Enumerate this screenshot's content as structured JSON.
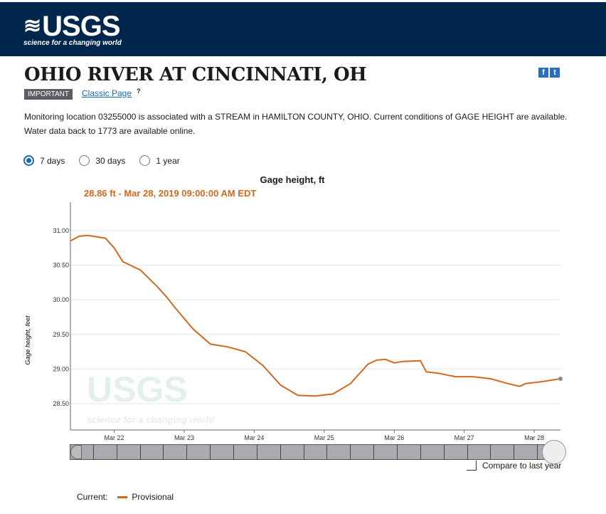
{
  "header": {
    "logo_text": "USGS",
    "logo_tagline": "science for a changing world"
  },
  "page": {
    "title": "OHIO RIVER AT CINCINNATI, OH",
    "badge": "IMPORTANT",
    "classic_link": "Classic Page",
    "help_icon": "?",
    "description_line1": "Monitoring location 03255000 is associated with a STREAM in HAMILTON COUNTY, OHIO. Current conditions of GAGE HEIGHT are available.",
    "description_line2": "Water data back to 1773 are available online.",
    "social": {
      "facebook": "f",
      "twitter": "t"
    }
  },
  "period_options": [
    {
      "label": "7 days",
      "selected": true
    },
    {
      "label": "30 days",
      "selected": false
    },
    {
      "label": "1 year",
      "selected": false
    }
  ],
  "compare_label": "Compare to last year",
  "legend": {
    "label": "Current:",
    "series": "Provisional"
  },
  "colors": {
    "header": "#00264c",
    "series": "#d2691e",
    "link": "#1a6bb5"
  },
  "chart_data": {
    "type": "line",
    "title": "Gage height, ft",
    "tooltip": "28.86 ft - Mar 28, 2019 09:00:00 AM EDT",
    "ylabel": "Gage height, feet",
    "xlim": [
      "2019-03-21T09:00",
      "2019-03-28T09:00"
    ],
    "ylim": [
      28.12,
      31.41
    ],
    "yticks": [
      "28.50",
      "29.00",
      "29.50",
      "30.00",
      "30.50",
      "31.00"
    ],
    "xticks": [
      {
        "date": "2019-03-22T00:00",
        "label": "Mar 22"
      },
      {
        "date": "2019-03-23T00:00",
        "label": "Mar 23"
      },
      {
        "date": "2019-03-24T00:00",
        "label": "Mar 24"
      },
      {
        "date": "2019-03-25T00:00",
        "label": "Mar 25"
      },
      {
        "date": "2019-03-26T00:00",
        "label": "Mar 26"
      },
      {
        "date": "2019-03-27T00:00",
        "label": "Mar 27"
      },
      {
        "date": "2019-03-28T00:00",
        "label": "Mar 28"
      }
    ],
    "grid": true,
    "series": [
      {
        "name": "Provisional",
        "points": [
          [
            "2019-03-21T09:00",
            30.85
          ],
          [
            "2019-03-21T12:00",
            30.92
          ],
          [
            "2019-03-21T15:00",
            30.93
          ],
          [
            "2019-03-21T18:00",
            30.91
          ],
          [
            "2019-03-21T21:00",
            30.89
          ],
          [
            "2019-03-22T00:00",
            30.75
          ],
          [
            "2019-03-22T03:00",
            30.55
          ],
          [
            "2019-03-22T09:00",
            30.43
          ],
          [
            "2019-03-22T15:00",
            30.18
          ],
          [
            "2019-03-22T18:00",
            30.04
          ],
          [
            "2019-03-22T21:00",
            29.88
          ],
          [
            "2019-03-23T03:00",
            29.58
          ],
          [
            "2019-03-23T09:00",
            29.36
          ],
          [
            "2019-03-23T15:00",
            29.32
          ],
          [
            "2019-03-23T21:00",
            29.25
          ],
          [
            "2019-03-24T03:00",
            29.05
          ],
          [
            "2019-03-24T09:00",
            28.77
          ],
          [
            "2019-03-24T15:00",
            28.62
          ],
          [
            "2019-03-24T21:00",
            28.61
          ],
          [
            "2019-03-25T03:00",
            28.64
          ],
          [
            "2019-03-25T09:00",
            28.79
          ],
          [
            "2019-03-25T15:00",
            29.07
          ],
          [
            "2019-03-25T18:00",
            29.13
          ],
          [
            "2019-03-25T21:00",
            29.14
          ],
          [
            "2019-03-26T00:00",
            29.09
          ],
          [
            "2019-03-26T03:00",
            29.11
          ],
          [
            "2019-03-26T09:00",
            29.12
          ],
          [
            "2019-03-26T11:00",
            28.96
          ],
          [
            "2019-03-26T15:00",
            28.94
          ],
          [
            "2019-03-26T21:00",
            28.89
          ],
          [
            "2019-03-27T03:00",
            28.89
          ],
          [
            "2019-03-27T09:00",
            28.86
          ],
          [
            "2019-03-27T15:00",
            28.79
          ],
          [
            "2019-03-27T19:00",
            28.75
          ],
          [
            "2019-03-27T21:00",
            28.79
          ],
          [
            "2019-03-28T03:00",
            28.82
          ],
          [
            "2019-03-28T09:00",
            28.86
          ]
        ]
      }
    ]
  }
}
